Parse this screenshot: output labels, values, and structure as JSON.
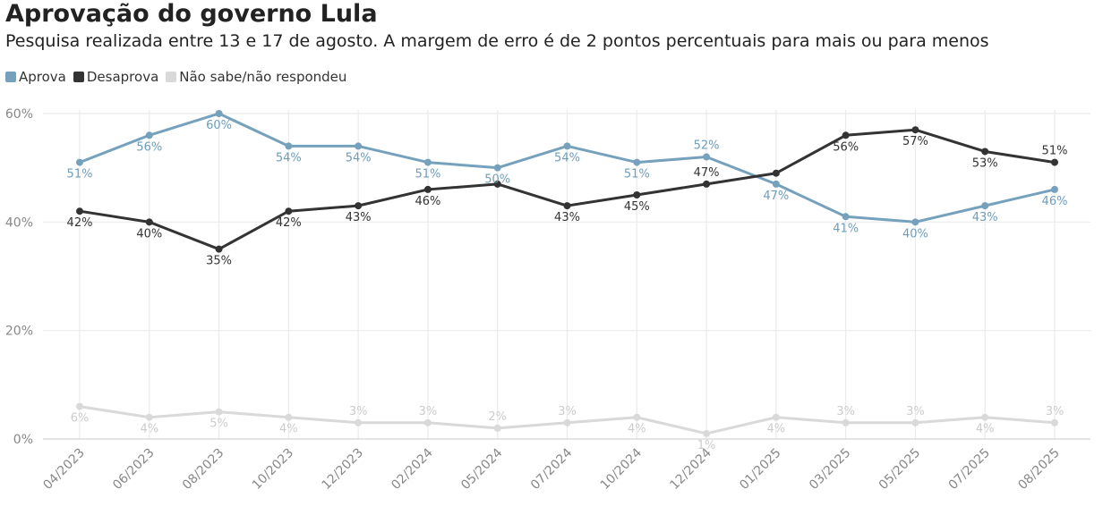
{
  "chart_data": {
    "type": "line",
    "title": "Aprovação do governo Lula",
    "subtitle": "Pesquisa realizada entre 13 e 17 de agosto. A margem de erro é de 2 pontos percentuais para mais ou para menos",
    "categories": [
      "04/2023",
      "06/2023",
      "08/2023",
      "10/2023",
      "12/2023",
      "02/2024",
      "05/2024",
      "07/2024",
      "10/2024",
      "12/2024",
      "01/2025",
      "03/2025",
      "05/2025",
      "07/2025",
      "08/2025"
    ],
    "ylim": [
      0,
      60
    ],
    "yticks": [
      0,
      20,
      40,
      60
    ],
    "ytick_labels": [
      "0%",
      "20%",
      "40%",
      "60%"
    ],
    "grid": true,
    "legend_position": "top-left",
    "series": [
      {
        "name": "Aprova",
        "color": "#75a1bd",
        "label_color": "#6e9dba",
        "values": [
          51,
          56,
          60,
          54,
          54,
          51,
          50,
          54,
          51,
          52,
          47,
          41,
          40,
          43,
          46
        ],
        "labels": [
          "51%",
          "56%",
          "60%",
          "54%",
          "54%",
          "51%",
          "50%",
          "54%",
          "51%",
          "52%",
          "47%",
          "41%",
          "40%",
          "43%",
          "46%"
        ]
      },
      {
        "name": "Desaprova",
        "color": "#333333",
        "label_color": "#333333",
        "values": [
          42,
          40,
          35,
          42,
          43,
          46,
          47,
          43,
          45,
          47,
          49,
          56,
          57,
          53,
          51
        ],
        "labels": [
          "42%",
          "40%",
          "35%",
          "42%",
          "43%",
          "46%",
          "",
          "43%",
          "45%",
          "47%",
          "",
          "56%",
          "57%",
          "53%",
          "51%"
        ]
      },
      {
        "name": "Não sabe/não respondeu",
        "color": "#d9d9d9",
        "label_color": "#cccccc",
        "values": [
          6,
          4,
          5,
          4,
          3,
          3,
          2,
          3,
          4,
          1,
          4,
          3,
          3,
          4,
          3
        ],
        "labels": [
          "6%",
          "4%",
          "5%",
          "4%",
          "3%",
          "3%",
          "2%",
          "3%",
          "4%",
          "1%",
          "4%",
          "3%",
          "3%",
          "4%",
          "3%"
        ]
      }
    ]
  }
}
